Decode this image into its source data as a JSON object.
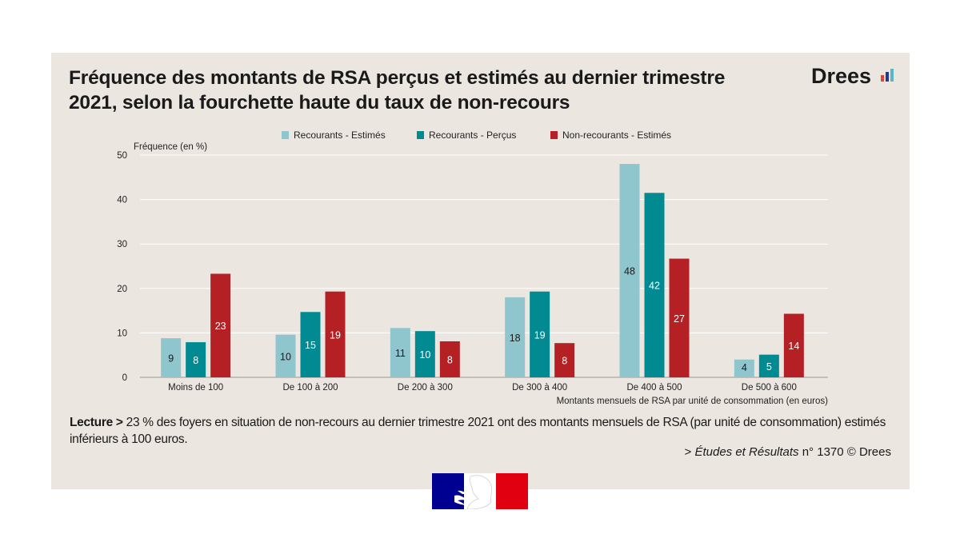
{
  "title": "Fréquence des montants de RSA perçus et estimés au dernier trimestre 2021, selon la fourchette haute du taux de non-recours",
  "logo": {
    "text": "Drees",
    "bar_colors": [
      "#e6413b",
      "#1b3c8f",
      "#5cb5c7"
    ]
  },
  "colors": {
    "panel": "#ece6e1",
    "light_teal": "#8fc5cd",
    "teal": "#028a92",
    "red": "#b52025",
    "grid": "#ffffff"
  },
  "lecture": {
    "label": "Lecture >",
    "text": " 23 % des foyers en situation de non-recours au dernier trimestre 2021 ont des montants mensuels de RSA (par unité de consommation) estimés inférieurs à 100 euros."
  },
  "source": {
    "prefix": "> ",
    "italic": "Études et Résultats",
    "suffix": " n° 1370 © Drees"
  },
  "flag": {
    "colors": [
      "#000091",
      "#ffffff",
      "#e1000f"
    ]
  },
  "chart_data": {
    "type": "bar",
    "ylabel": "Fréquence (en %)",
    "xlabel": "Montants mensuels de RSA par unité de consommation (en euros)",
    "ylim": [
      0,
      50
    ],
    "yticks": [
      0,
      10,
      20,
      30,
      40,
      50
    ],
    "grid": true,
    "legend_position": "top",
    "categories": [
      "Moins de 100",
      "De 100 à 200",
      "De 200 à 300",
      "De 300 à 400",
      "De 400 à 500",
      "De 500 à 600"
    ],
    "series": [
      {
        "name": "Recourants - Estimés",
        "color": "#8fc5cd",
        "label_color": "#1a1a1a",
        "values": [
          8.8,
          9.6,
          11.1,
          18.0,
          48.0,
          4.0
        ],
        "labels": [
          "9",
          "10",
          "11",
          "18",
          "48",
          "4"
        ]
      },
      {
        "name": "Recourants - Perçus",
        "color": "#028a92",
        "label_color": "#ffffff",
        "values": [
          7.9,
          14.7,
          10.4,
          19.3,
          41.5,
          5.1
        ],
        "labels": [
          "8",
          "15",
          "10",
          "19",
          "42",
          "5"
        ]
      },
      {
        "name": "Non-recourants - Estimés",
        "color": "#b52025",
        "label_color": "#ffffff",
        "values": [
          23.3,
          19.3,
          8.1,
          7.7,
          26.7,
          14.3
        ],
        "labels": [
          "23",
          "19",
          "8",
          "8",
          "27",
          "14"
        ]
      }
    ]
  }
}
